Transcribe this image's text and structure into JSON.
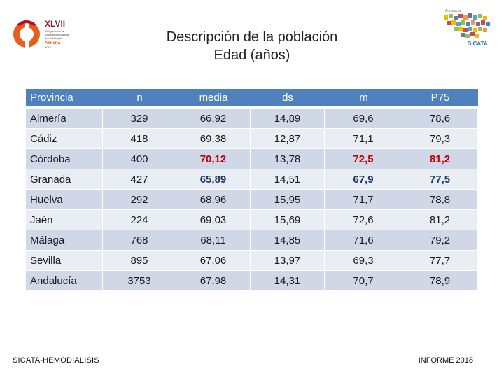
{
  "header": {
    "title_line1": "Descripción de la población",
    "title_line2": "Edad (años)"
  },
  "logo_left": {
    "number": "XLVII",
    "lines": [
      "Congreso de la",
      "Sociedad Andaluza",
      "de Nefrología"
    ],
    "city": "Almería",
    "dates": "2018"
  },
  "logo_right": {
    "text": "SICATA",
    "tagline": "Andalucía"
  },
  "table": {
    "headers": [
      "Provincia",
      "n",
      "media",
      "ds",
      "m",
      "P75"
    ],
    "rows": [
      {
        "provincia": "Almería",
        "n": "329",
        "media": "66,92",
        "ds": "14,89",
        "m": "69,6",
        "p75": "78,6"
      },
      {
        "provincia": "Cádiz",
        "n": "418",
        "media": "69,38",
        "ds": "12,87",
        "m": "71,1",
        "p75": "79,3"
      },
      {
        "provincia": "Córdoba",
        "n": "400",
        "media": "70,12",
        "ds": "13,78",
        "m": "72,5",
        "p75": "81,2"
      },
      {
        "provincia": "Granada",
        "n": "427",
        "media": "65,89",
        "ds": "14,51",
        "m": "67,9",
        "p75": "77,5"
      },
      {
        "provincia": "Huelva",
        "n": "292",
        "media": "68,96",
        "ds": "15,95",
        "m": "71,7",
        "p75": "78,8"
      },
      {
        "provincia": "Jaén",
        "n": "224",
        "media": "69,03",
        "ds": "15,69",
        "m": "72,6",
        "p75": "81,2"
      },
      {
        "provincia": "Málaga",
        "n": "768",
        "media": "68,11",
        "ds": "14,85",
        "m": "71,6",
        "p75": "79,2"
      },
      {
        "provincia": "Sevilla",
        "n": "895",
        "media": "67,06",
        "ds": "13,97",
        "m": "69,3",
        "p75": "77,7"
      },
      {
        "provincia": "Andalucía",
        "n": "3753",
        "media": "67,98",
        "ds": "14,31",
        "m": "70,7",
        "p75": "78,9"
      }
    ]
  },
  "footer": {
    "left": "SICATA-HEMODIALISIS",
    "right": "INFORME 2018"
  },
  "colors": {
    "header_bg": "#4f81bd",
    "row_odd": "#d0d8e8",
    "row_even": "#e9edf4",
    "highlight_high": "#c00000",
    "highlight_low": "#1f3864"
  }
}
